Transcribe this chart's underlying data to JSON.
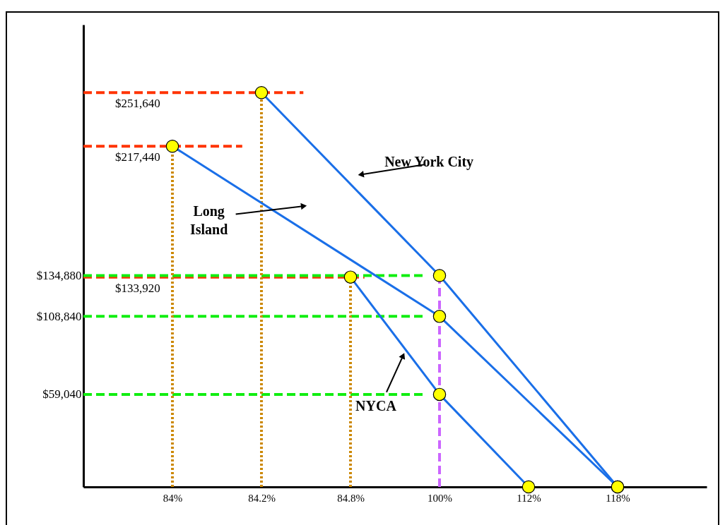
{
  "chart_data": {
    "type": "line",
    "categories": [
      "84%",
      "84.2%",
      "84.8%",
      "100%",
      "112%",
      "118%"
    ],
    "series": [
      {
        "name": "New York City",
        "color": "#1a6fe8",
        "x": [
          "84.2%",
          "100%",
          "118%"
        ],
        "values": [
          251640,
          134880,
          0
        ]
      },
      {
        "name": "Long Island",
        "color": "#1a6fe8",
        "x": [
          "84%",
          "100%",
          "118%"
        ],
        "values": [
          217440,
          108840,
          0
        ]
      },
      {
        "name": "NYCA",
        "color": "#1a6fe8",
        "x": [
          "84.8%",
          "100%",
          "112%"
        ],
        "values": [
          133920,
          59040,
          0
        ]
      }
    ],
    "marker": "circle",
    "ylim": [
      0,
      295000
    ],
    "yticks": [
      {
        "value": 59040,
        "label": "$59,040"
      },
      {
        "value": 108840,
        "label": "$108,840"
      },
      {
        "value": 134880,
        "label": "$134,880"
      }
    ],
    "ref_lines": [
      {
        "axis": "y",
        "value": 251640,
        "label": "$251,640",
        "color": "#ff3300",
        "line_style": "dashed"
      },
      {
        "axis": "y",
        "value": 217440,
        "label": "$217,440",
        "color": "#ff3300",
        "line_style": "dashed"
      },
      {
        "axis": "y",
        "value": 133920,
        "label": "$133,920",
        "color": "#ff3300",
        "line_style": "dashed"
      },
      {
        "axis": "y",
        "value": 134880,
        "color": "#11ee11",
        "line_style": "dashed"
      },
      {
        "axis": "y",
        "value": 108840,
        "color": "#11ee11",
        "line_style": "dashed"
      },
      {
        "axis": "y",
        "value": 59040,
        "color": "#11ee11",
        "line_style": "dashed"
      },
      {
        "axis": "x",
        "value": "84%",
        "color": "#cc8800",
        "line_style": "dotted"
      },
      {
        "axis": "x",
        "value": "84.2%",
        "color": "#cc8800",
        "line_style": "dotted"
      },
      {
        "axis": "x",
        "value": "84.8%",
        "color": "#cc8800",
        "line_style": "dotted"
      },
      {
        "axis": "x",
        "value": "100%",
        "color": "#cc66ff",
        "line_style": "dashed"
      }
    ]
  }
}
